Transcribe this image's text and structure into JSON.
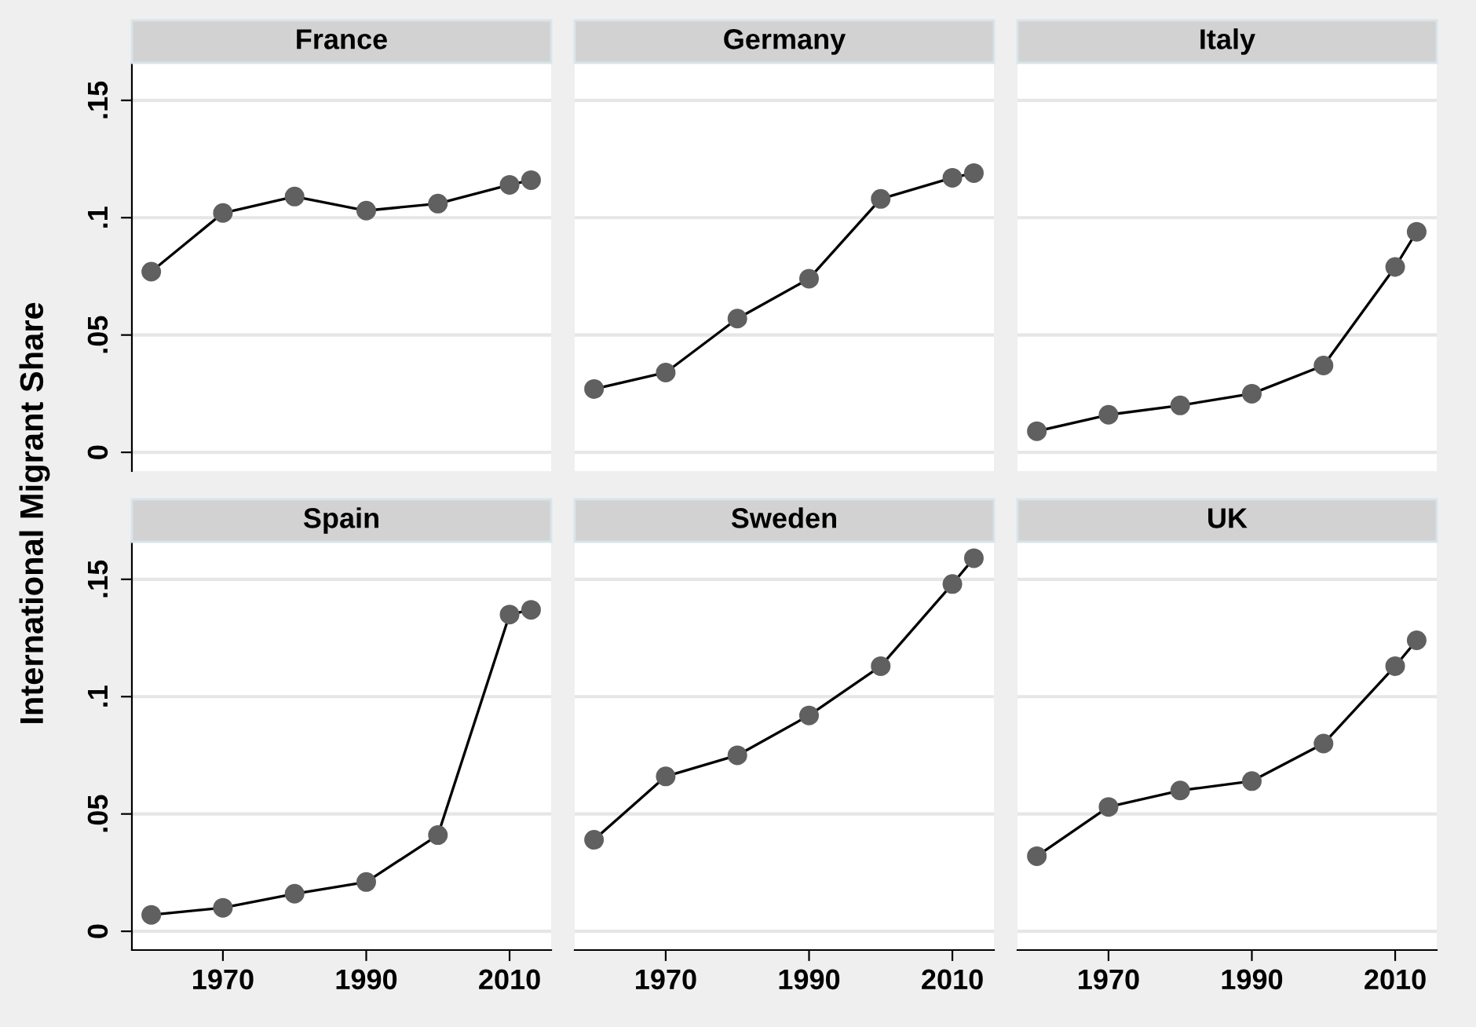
{
  "chart_data": [
    {
      "type": "line",
      "title": "France",
      "ylabel": "International Migrant Share",
      "x": [
        1960,
        1970,
        1980,
        1990,
        2000,
        2010,
        2013
      ],
      "values": [
        0.077,
        0.102,
        0.109,
        0.103,
        0.106,
        0.114,
        0.116
      ],
      "color": "#606060",
      "marker": "circle",
      "grid": "y",
      "xlim": [
        1957.3,
        2015.8
      ],
      "ylim": [
        -0.008,
        0.166
      ],
      "yticks": [
        0,
        {
          "value": 0.05,
          "label": ".05"
        },
        {
          "value": 0.1,
          "label": ".1"
        },
        {
          "value": 0.15,
          "label": ".15"
        }
      ],
      "tick_labels": "y"
    },
    {
      "type": "line",
      "title": "Germany",
      "x": [
        1960,
        1970,
        1980,
        1990,
        2000,
        2010,
        2013
      ],
      "values": [
        0.027,
        0.034,
        0.057,
        0.074,
        0.108,
        0.117,
        0.119
      ],
      "color": "#606060",
      "marker": "circle",
      "grid": "y",
      "xlim": [
        1957.3,
        2015.8
      ],
      "ylim": [
        -0.008,
        0.166
      ],
      "yticks": [
        {
          "value": 0,
          "label": null
        },
        {
          "value": 0.05,
          "label": null
        },
        {
          "value": 0.1,
          "label": null
        },
        {
          "value": 0.15,
          "label": null
        }
      ],
      "tick_labels": false
    },
    {
      "type": "line",
      "title": "Italy",
      "x": [
        1960,
        1970,
        1980,
        1990,
        2000,
        2010,
        2013
      ],
      "values": [
        0.009,
        0.016,
        0.02,
        0.025,
        0.037,
        0.079,
        0.094
      ],
      "color": "#606060",
      "marker": "circle",
      "grid": "y",
      "xlim": [
        1957.3,
        2015.8
      ],
      "ylim": [
        -0.008,
        0.166
      ],
      "yticks": [
        {
          "value": 0,
          "label": null
        },
        {
          "value": 0.05,
          "label": null
        },
        {
          "value": 0.1,
          "label": null
        },
        {
          "value": 0.15,
          "label": null
        }
      ],
      "tick_labels": false
    },
    {
      "type": "line",
      "title": "Spain",
      "x": [
        1960,
        1970,
        1980,
        1990,
        2000,
        2010,
        2013
      ],
      "values": [
        0.007,
        0.01,
        0.016,
        0.021,
        0.041,
        0.135,
        0.137
      ],
      "color": "#606060",
      "marker": "circle",
      "grid": "y",
      "xlim": [
        1957.3,
        2015.8
      ],
      "ylim": [
        -0.008,
        0.166
      ],
      "xticks": [
        1970,
        1990,
        2010
      ],
      "yticks": [
        0,
        {
          "value": 0.05,
          "label": ".05"
        },
        {
          "value": 0.1,
          "label": ".1"
        },
        {
          "value": 0.15,
          "label": ".15"
        }
      ]
    },
    {
      "type": "line",
      "title": "Sweden",
      "x": [
        1960,
        1970,
        1980,
        1990,
        2000,
        2010,
        2013
      ],
      "values": [
        0.039,
        0.066,
        0.075,
        0.092,
        0.113,
        0.148,
        0.159
      ],
      "color": "#606060",
      "marker": "circle",
      "grid": "y",
      "xlim": [
        1957.3,
        2015.8
      ],
      "ylim": [
        -0.008,
        0.166
      ],
      "xticks": [
        1970,
        1990,
        2010
      ],
      "yticks": [
        {
          "value": 0,
          "label": null
        },
        {
          "value": 0.05,
          "label": null
        },
        {
          "value": 0.1,
          "label": null
        },
        {
          "value": 0.15,
          "label": null
        }
      ],
      "tick_labels": "x"
    },
    {
      "type": "line",
      "title": "UK",
      "x": [
        1960,
        1970,
        1980,
        1990,
        2000,
        2010,
        2013
      ],
      "values": [
        0.032,
        0.053,
        0.06,
        0.064,
        0.08,
        0.113,
        0.124
      ],
      "color": "#606060",
      "marker": "circle",
      "grid": "y",
      "xlim": [
        1957.3,
        2015.8
      ],
      "ylim": [
        -0.008,
        0.166
      ],
      "xticks": [
        1970,
        1990,
        2010
      ],
      "yticks": [
        {
          "value": 0,
          "label": null
        },
        {
          "value": 0.05,
          "label": null
        },
        {
          "value": 0.1,
          "label": null
        },
        {
          "value": 0.15,
          "label": null
        }
      ],
      "tick_labels": "x"
    }
  ]
}
